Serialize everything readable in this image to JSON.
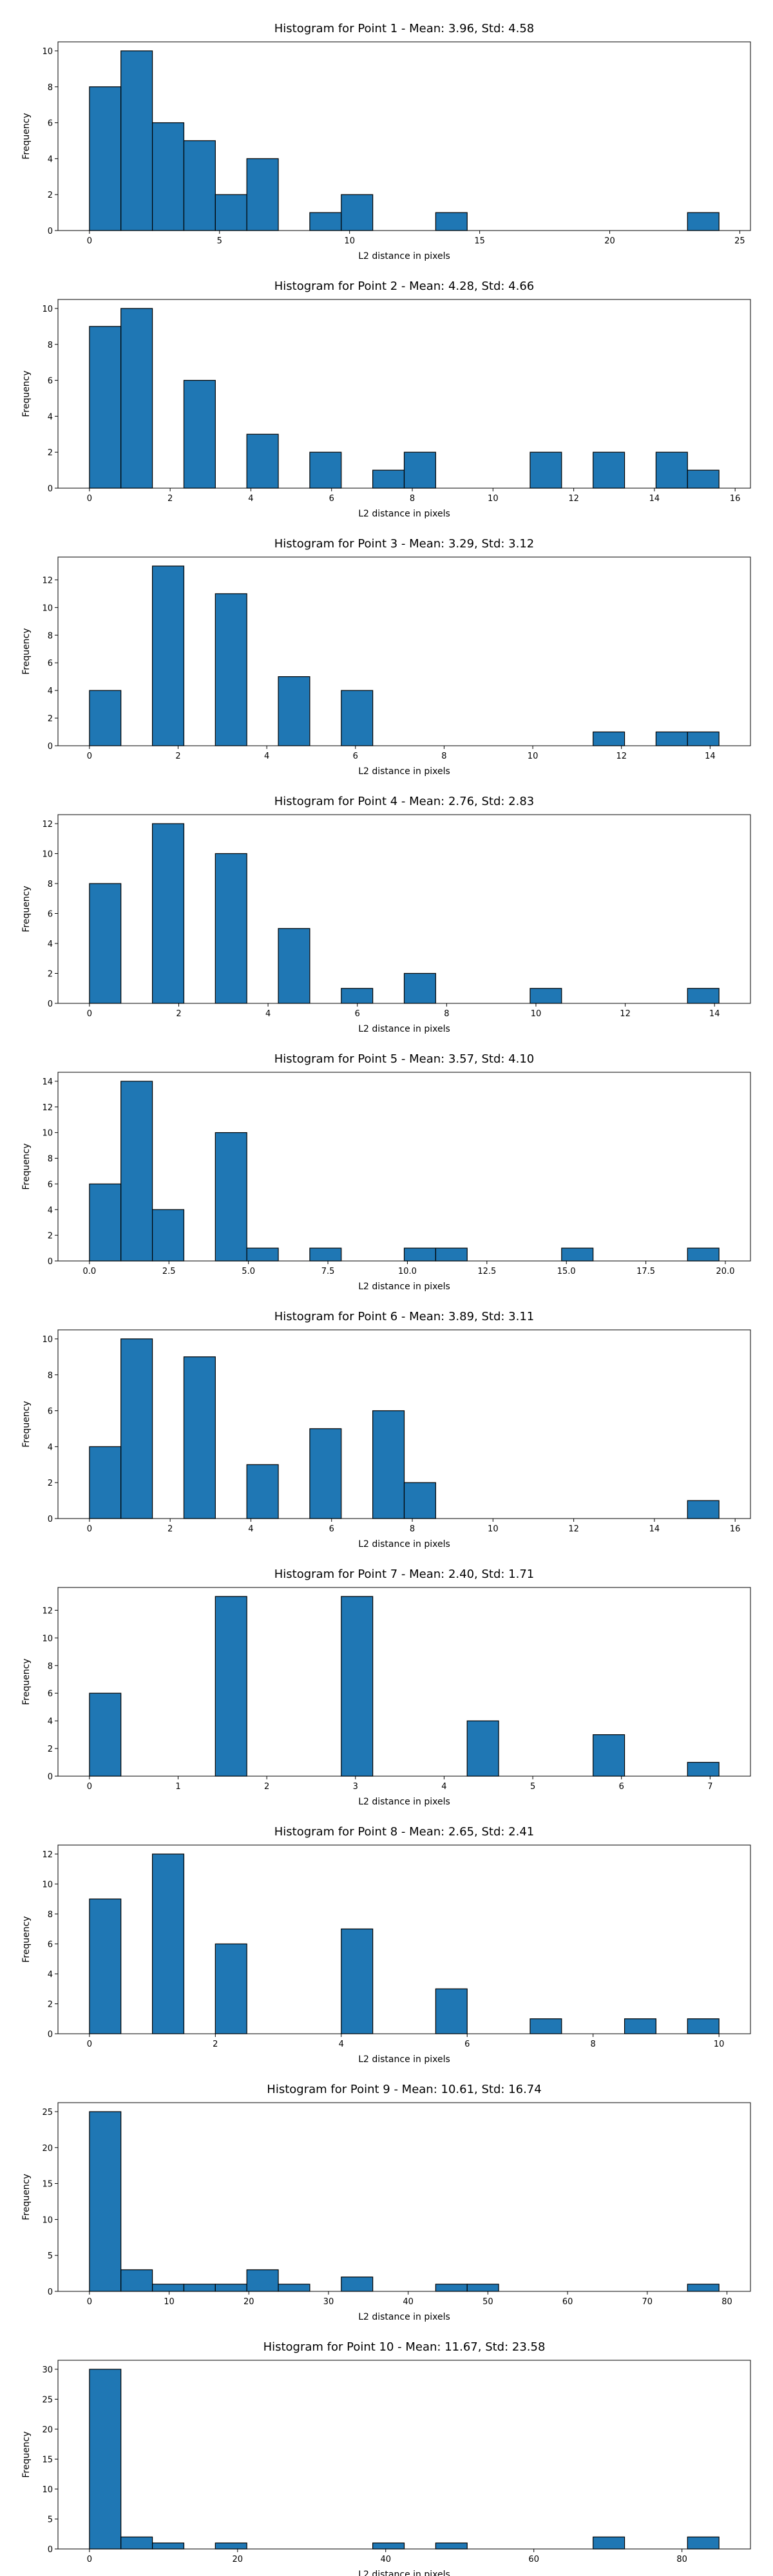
{
  "chart_data": [
    {
      "type": "histogram",
      "title": "Histogram for Point 1 - Mean: 3.96, Std: 4.58",
      "xlabel": "L2 distance in pixels",
      "ylabel": "Frequency",
      "color": "#1f77b4",
      "bins": [
        0,
        1.21,
        2.42,
        3.63,
        4.84,
        6.05,
        7.26,
        8.47,
        9.68,
        10.89,
        12.1,
        13.31,
        14.52,
        15.73,
        16.94,
        18.15,
        19.36,
        20.57,
        21.78,
        22.99,
        24.2
      ],
      "counts": [
        8,
        10,
        6,
        5,
        2,
        4,
        0,
        1,
        2,
        0,
        0,
        1,
        0,
        0,
        0,
        0,
        0,
        0,
        0,
        1
      ],
      "xlim": [
        -1.21,
        25.41
      ],
      "ylim": [
        0,
        10.5
      ],
      "xticks": [
        0,
        5,
        10,
        15,
        20,
        25
      ],
      "yticks": [
        0,
        2,
        4,
        6,
        8,
        10
      ]
    },
    {
      "type": "histogram",
      "title": "Histogram for Point 2 - Mean: 4.28, Std: 4.66",
      "xlabel": "L2 distance in pixels",
      "ylabel": "Frequency",
      "color": "#1f77b4",
      "bins": [
        0,
        0.78,
        1.56,
        2.34,
        3.12,
        3.9,
        4.68,
        5.46,
        6.24,
        7.02,
        7.8,
        8.58,
        9.36,
        10.14,
        10.92,
        11.7,
        12.48,
        13.26,
        14.04,
        14.82,
        15.6
      ],
      "counts": [
        9,
        10,
        0,
        6,
        0,
        3,
        0,
        2,
        0,
        1,
        2,
        0,
        0,
        0,
        2,
        0,
        2,
        0,
        2,
        1
      ],
      "xlim": [
        -0.78,
        16.38
      ],
      "ylim": [
        0,
        10.5
      ],
      "xticks": [
        0,
        2,
        4,
        6,
        8,
        10,
        12,
        14,
        16
      ],
      "yticks": [
        0,
        2,
        4,
        6,
        8,
        10
      ]
    },
    {
      "type": "histogram",
      "title": "Histogram for Point 3 - Mean: 3.29, Std: 3.12",
      "xlabel": "L2 distance in pixels",
      "ylabel": "Frequency",
      "color": "#1f77b4",
      "bins": [
        0,
        0.71,
        1.42,
        2.13,
        2.84,
        3.55,
        4.26,
        4.97,
        5.68,
        6.39,
        7.1,
        7.81,
        8.52,
        9.23,
        9.94,
        10.65,
        11.36,
        12.07,
        12.78,
        13.49,
        14.2
      ],
      "counts": [
        4,
        0,
        13,
        0,
        11,
        0,
        5,
        0,
        4,
        0,
        0,
        0,
        0,
        0,
        0,
        0,
        1,
        0,
        1,
        1
      ],
      "xlim": [
        -0.71,
        14.91
      ],
      "ylim": [
        0,
        13.65
      ],
      "xticks": [
        0,
        2,
        4,
        6,
        8,
        10,
        12,
        14
      ],
      "yticks": [
        0,
        2,
        4,
        6,
        8,
        10,
        12
      ]
    },
    {
      "type": "histogram",
      "title": "Histogram for Point 4 - Mean: 2.76, Std: 2.83",
      "xlabel": "L2 distance in pixels",
      "ylabel": "Frequency",
      "color": "#1f77b4",
      "bins": [
        0,
        0.705,
        1.41,
        2.115,
        2.82,
        3.525,
        4.23,
        4.935,
        5.64,
        6.345,
        7.05,
        7.755,
        8.46,
        9.165,
        9.87,
        10.575,
        11.28,
        11.985,
        12.69,
        13.395,
        14.1
      ],
      "counts": [
        8,
        0,
        12,
        0,
        10,
        0,
        5,
        0,
        1,
        0,
        2,
        0,
        0,
        0,
        1,
        0,
        0,
        0,
        0,
        1
      ],
      "xlim": [
        -0.705,
        14.805
      ],
      "ylim": [
        0,
        12.6
      ],
      "xticks": [
        0,
        2,
        4,
        6,
        8,
        10,
        12,
        14
      ],
      "yticks": [
        0,
        2,
        4,
        6,
        8,
        10,
        12
      ]
    },
    {
      "type": "histogram",
      "title": "Histogram for Point 5 - Mean: 3.57, Std: 4.10",
      "xlabel": "L2 distance in pixels",
      "ylabel": "Frequency",
      "color": "#1f77b4",
      "bins": [
        0,
        0.99,
        1.98,
        2.97,
        3.96,
        4.95,
        5.94,
        6.93,
        7.92,
        8.91,
        9.9,
        10.89,
        11.88,
        12.87,
        13.86,
        14.85,
        15.84,
        16.83,
        17.82,
        18.81,
        19.8
      ],
      "counts": [
        6,
        14,
        4,
        0,
        10,
        1,
        0,
        1,
        0,
        0,
        1,
        1,
        0,
        0,
        0,
        1,
        0,
        0,
        0,
        1
      ],
      "xlim": [
        -0.99,
        20.79
      ],
      "ylim": [
        0,
        14.7
      ],
      "xticks": [
        {
          "value": 0,
          "label": "0.0"
        },
        2.5,
        {
          "value": 5,
          "label": "5.0"
        },
        7.5,
        {
          "value": 10,
          "label": "10.0"
        },
        12.5,
        {
          "value": 15,
          "label": "15.0"
        },
        17.5,
        {
          "value": 20,
          "label": "20.0"
        }
      ],
      "yticks": [
        0,
        2,
        4,
        6,
        8,
        10,
        12,
        14
      ]
    },
    {
      "type": "histogram",
      "title": "Histogram for Point 6 - Mean: 3.89, Std: 3.11",
      "xlabel": "L2 distance in pixels",
      "ylabel": "Frequency",
      "color": "#1f77b4",
      "bins": [
        0,
        0.78,
        1.56,
        2.34,
        3.12,
        3.9,
        4.68,
        5.46,
        6.24,
        7.02,
        7.8,
        8.58,
        9.36,
        10.14,
        10.92,
        11.7,
        12.48,
        13.26,
        14.04,
        14.82,
        15.6
      ],
      "counts": [
        4,
        10,
        0,
        9,
        0,
        3,
        0,
        5,
        0,
        6,
        2,
        0,
        0,
        0,
        0,
        0,
        0,
        0,
        0,
        1
      ],
      "xlim": [
        -0.78,
        16.38
      ],
      "ylim": [
        0,
        10.5
      ],
      "xticks": [
        0,
        2,
        4,
        6,
        8,
        10,
        12,
        14,
        16
      ],
      "yticks": [
        0,
        2,
        4,
        6,
        8,
        10
      ]
    },
    {
      "type": "histogram",
      "title": "Histogram for Point 7 - Mean: 2.40, Std: 1.71",
      "xlabel": "L2 distance in pixels",
      "ylabel": "Frequency",
      "color": "#1f77b4",
      "bins": [
        0,
        0.355,
        0.71,
        1.065,
        1.42,
        1.775,
        2.13,
        2.485,
        2.84,
        3.195,
        3.55,
        3.905,
        4.26,
        4.615,
        4.97,
        5.325,
        5.68,
        6.035,
        6.39,
        6.745,
        7.1
      ],
      "counts": [
        6,
        0,
        0,
        0,
        13,
        0,
        0,
        0,
        13,
        0,
        0,
        0,
        4,
        0,
        0,
        0,
        3,
        0,
        0,
        1
      ],
      "xlim": [
        -0.355,
        7.455
      ],
      "ylim": [
        0,
        13.65
      ],
      "xticks": [
        0,
        1,
        2,
        3,
        4,
        5,
        6,
        7
      ],
      "yticks": [
        0,
        2,
        4,
        6,
        8,
        10,
        12
      ]
    },
    {
      "type": "histogram",
      "title": "Histogram for Point 8 - Mean: 2.65, Std: 2.41",
      "xlabel": "L2 distance in pixels",
      "ylabel": "Frequency",
      "color": "#1f77b4",
      "bins": [
        0,
        0.5,
        1,
        1.5,
        2,
        2.5,
        3,
        3.5,
        4,
        4.5,
        5,
        5.5,
        6,
        6.5,
        7,
        7.5,
        8,
        8.5,
        9,
        9.5,
        10
      ],
      "counts": [
        9,
        0,
        12,
        0,
        6,
        0,
        0,
        0,
        7,
        0,
        0,
        3,
        0,
        0,
        1,
        0,
        0,
        1,
        0,
        1
      ],
      "xlim": [
        -0.5,
        10.5
      ],
      "ylim": [
        0,
        12.6
      ],
      "xticks": [
        0,
        2,
        4,
        6,
        8,
        10
      ],
      "yticks": [
        0,
        2,
        4,
        6,
        8,
        10,
        12
      ]
    },
    {
      "type": "histogram",
      "title": "Histogram for Point 9 - Mean: 10.61, Std: 16.74",
      "xlabel": "L2 distance in pixels",
      "ylabel": "Frequency",
      "color": "#1f77b4",
      "bins": [
        0,
        3.95,
        7.9,
        11.85,
        15.8,
        19.75,
        23.7,
        27.65,
        31.6,
        35.55,
        39.5,
        43.45,
        47.4,
        51.35,
        55.3,
        59.25,
        63.2,
        67.15,
        71.1,
        75.05,
        79
      ],
      "counts": [
        25,
        3,
        1,
        1,
        1,
        3,
        1,
        0,
        2,
        0,
        0,
        1,
        1,
        0,
        0,
        0,
        0,
        0,
        0,
        1
      ],
      "xlim": [
        -3.95,
        82.95
      ],
      "ylim": [
        0,
        26.25
      ],
      "xticks": [
        0,
        10,
        20,
        30,
        40,
        50,
        60,
        70,
        80
      ],
      "yticks": [
        0,
        5,
        10,
        15,
        20,
        25
      ]
    },
    {
      "type": "histogram",
      "title": "Histogram for Point 10 - Mean: 11.67, Std: 23.58",
      "xlabel": "L2 distance in pixels",
      "ylabel": "Frequency",
      "color": "#1f77b4",
      "bins": [
        0,
        4.25,
        8.5,
        12.75,
        17,
        21.25,
        25.5,
        29.75,
        34,
        38.25,
        42.5,
        46.75,
        51,
        55.25,
        59.5,
        63.75,
        68,
        72.25,
        76.5,
        80.75,
        85
      ],
      "counts": [
        30,
        2,
        1,
        0,
        1,
        0,
        0,
        0,
        0,
        1,
        0,
        1,
        0,
        0,
        0,
        0,
        2,
        0,
        0,
        2
      ],
      "xlim": [
        -4.25,
        89.25
      ],
      "ylim": [
        0,
        31.5
      ],
      "xticks": [
        0,
        20,
        40,
        60,
        80
      ],
      "yticks": [
        0,
        5,
        10,
        15,
        20,
        25,
        30
      ]
    }
  ]
}
